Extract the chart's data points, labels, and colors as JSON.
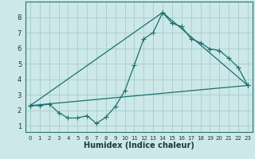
{
  "xlabel": "Humidex (Indice chaleur)",
  "background_color": "#cce8e8",
  "grid_color": "#aacccc",
  "line_color": "#1a7070",
  "xlim": [
    -0.5,
    23.5
  ],
  "ylim": [
    0.6,
    9.0
  ],
  "xtick_labels": [
    "0",
    "1",
    "2",
    "3",
    "4",
    "5",
    "6",
    "7",
    "8",
    "9",
    "10",
    "11",
    "12",
    "13",
    "14",
    "15",
    "16",
    "17",
    "18",
    "19",
    "20",
    "21",
    "22",
    "23"
  ],
  "xtick_vals": [
    0,
    1,
    2,
    3,
    4,
    5,
    6,
    7,
    8,
    9,
    10,
    11,
    12,
    13,
    14,
    15,
    16,
    17,
    18,
    19,
    20,
    21,
    22,
    23
  ],
  "yticks": [
    1,
    2,
    3,
    4,
    5,
    6,
    7,
    8
  ],
  "line1_x": [
    0,
    1,
    2,
    3,
    4,
    5,
    6,
    7,
    8,
    9,
    10,
    11,
    12,
    13,
    14,
    15,
    16,
    17,
    18,
    19,
    20,
    21,
    22,
    23
  ],
  "line1_y": [
    2.3,
    2.3,
    2.4,
    1.85,
    1.5,
    1.5,
    1.65,
    1.15,
    1.55,
    2.25,
    3.25,
    4.9,
    6.6,
    7.0,
    8.3,
    7.6,
    7.4,
    6.6,
    6.35,
    5.95,
    5.85,
    5.35,
    4.75,
    3.6
  ],
  "line2_x": [
    0,
    14,
    23
  ],
  "line2_y": [
    2.3,
    8.3,
    3.6
  ],
  "line3_x": [
    0,
    23
  ],
  "line3_y": [
    2.3,
    3.6
  ],
  "marker_size": 2.0,
  "linewidth": 0.9,
  "xlabel_fontsize": 7,
  "tick_fontsize_x": 5,
  "tick_fontsize_y": 6
}
